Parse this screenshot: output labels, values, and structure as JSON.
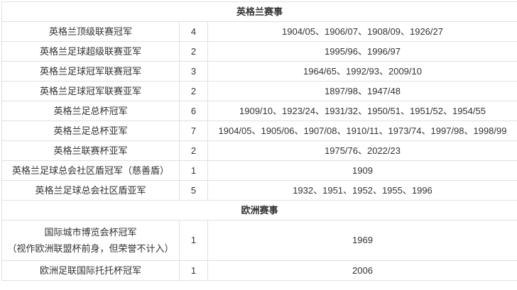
{
  "colors": {
    "border": "#e0e0e0",
    "text": "#333333",
    "background": "#ffffff"
  },
  "table": {
    "sections": [
      {
        "header": "英格兰赛事",
        "rows": [
          {
            "title": "英格兰顶级联赛冠军",
            "count": "4",
            "years": "1904/05、1906/07、1908/09、1926/27"
          },
          {
            "title": "英格兰足球超级联赛亚军",
            "count": "2",
            "years": "1995/96、1996/97"
          },
          {
            "title": "英格兰足球冠军联赛冠军",
            "count": "3",
            "years": "1964/65、1992/93、2009/10"
          },
          {
            "title": "英格兰足球冠军联赛亚军",
            "count": "2",
            "years": "1897/98、1947/48"
          },
          {
            "title": "英格兰足总杯冠军",
            "count": "6",
            "years": "1909/10、1923/24、1931/32、1950/51、1951/52、1954/55"
          },
          {
            "title": "英格兰足总杯亚军",
            "count": "7",
            "years": "1904/05、1905/06、1907/08、1910/11、1973/74、1997/98、1998/99"
          },
          {
            "title": "英格兰联赛杯亚军",
            "count": "2",
            "years": "1975/76、2022/23"
          },
          {
            "title": "英格兰足球总会社区盾冠军（慈善盾）",
            "count": "1",
            "years": "1909"
          },
          {
            "title": "英格兰足球总会社区盾亚军",
            "count": "5",
            "years": "1932、1951、1952、1955、1996"
          }
        ]
      },
      {
        "header": "欧洲赛事",
        "rows": [
          {
            "title": "国际城市博览会杯冠军",
            "subtitle": "（视作欧洲联盟杯前身，但荣誉不计入）",
            "count": "1",
            "years": "1969"
          },
          {
            "title": "欧洲足联国际托托杯冠军",
            "count": "1",
            "years": "2006"
          }
        ]
      }
    ]
  }
}
